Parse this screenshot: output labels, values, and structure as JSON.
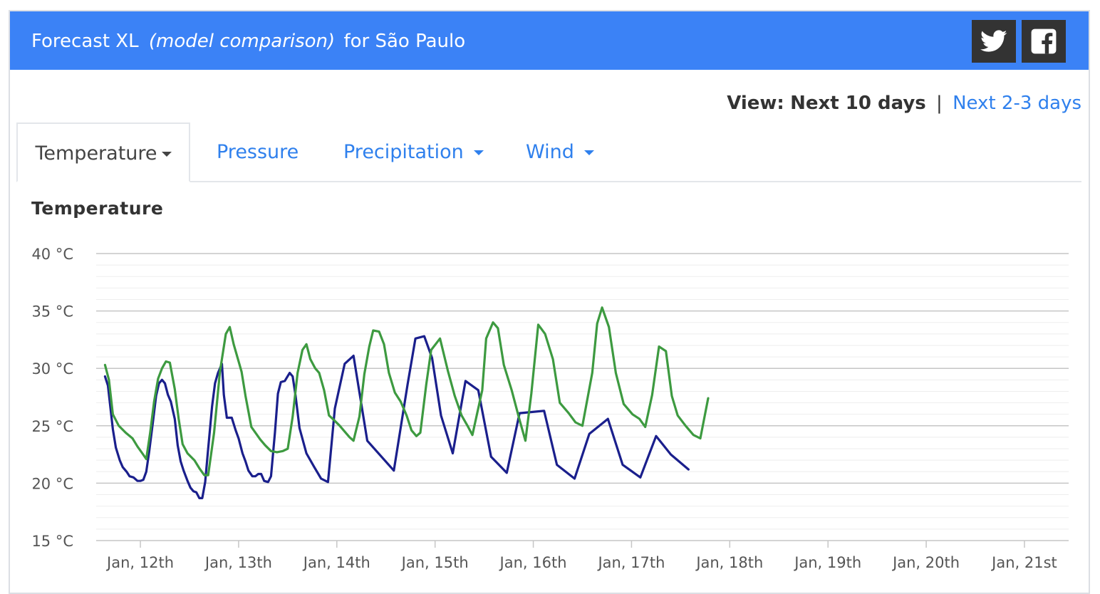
{
  "header": {
    "title_prefix": "Forecast XL",
    "title_em": "(model comparison)",
    "title_suffix": "for São Paulo",
    "twitter_icon": "twitter-icon",
    "facebook_icon": "facebook-icon",
    "bg_color": "#3b82f6"
  },
  "view": {
    "label": "View:",
    "current": "Next 10 days",
    "separator": "|",
    "alt": "Next 2-3 days"
  },
  "tabs": [
    {
      "label": "Temperature",
      "active": true,
      "has_caret": true
    },
    {
      "label": "Pressure",
      "active": false,
      "has_caret": false
    },
    {
      "label": "Precipitation",
      "active": false,
      "has_caret": true
    },
    {
      "label": "Wind",
      "active": false,
      "has_caret": true
    }
  ],
  "chart_title": "Temperature",
  "chart_data": {
    "type": "line",
    "title": "Temperature",
    "ylabel": "",
    "xlabel": "",
    "ylim": [
      15,
      40
    ],
    "yticks": [
      15,
      20,
      25,
      30,
      35,
      40
    ],
    "ytick_labels": [
      "15 °C",
      "20 °C",
      "25 °C",
      "30 °C",
      "35 °C",
      "40 °C"
    ],
    "xlim": [
      11.55,
      21.45
    ],
    "xticks": [
      12,
      13,
      14,
      15,
      16,
      17,
      18,
      19,
      20,
      21
    ],
    "xtick_labels": [
      "Jan, 12th",
      "Jan, 13th",
      "Jan, 14th",
      "Jan, 15th",
      "Jan, 16th",
      "Jan, 17th",
      "Jan, 18th",
      "Jan, 19th",
      "Jan, 20th",
      "Jan, 21st"
    ],
    "grid": true,
    "legend": "none",
    "series": [
      {
        "color": "#1a1f8c",
        "points": [
          [
            11.64,
            29.3
          ],
          [
            11.67,
            28.5
          ],
          [
            11.72,
            24.7
          ],
          [
            11.75,
            23.1
          ],
          [
            11.79,
            22.0
          ],
          [
            11.82,
            21.4
          ],
          [
            11.86,
            21.0
          ],
          [
            11.89,
            20.6
          ],
          [
            11.93,
            20.5
          ],
          [
            11.97,
            20.2
          ],
          [
            12.0,
            20.2
          ],
          [
            12.03,
            20.3
          ],
          [
            12.06,
            21.0
          ],
          [
            12.09,
            22.8
          ],
          [
            12.13,
            25.5
          ],
          [
            12.16,
            27.6
          ],
          [
            12.19,
            28.7
          ],
          [
            12.22,
            29.0
          ],
          [
            12.25,
            28.7
          ],
          [
            12.28,
            27.7
          ],
          [
            12.31,
            27.1
          ],
          [
            12.35,
            25.6
          ],
          [
            12.38,
            23.3
          ],
          [
            12.41,
            21.9
          ],
          [
            12.44,
            21.1
          ],
          [
            12.48,
            20.2
          ],
          [
            12.51,
            19.6
          ],
          [
            12.54,
            19.3
          ],
          [
            12.57,
            19.2
          ],
          [
            12.6,
            18.7
          ],
          [
            12.63,
            18.7
          ],
          [
            12.66,
            20.1
          ],
          [
            12.69,
            23.0
          ],
          [
            12.73,
            26.7
          ],
          [
            12.76,
            28.7
          ],
          [
            12.79,
            29.6
          ],
          [
            12.83,
            30.4
          ],
          [
            12.85,
            27.7
          ],
          [
            12.88,
            25.7
          ],
          [
            12.93,
            25.7
          ],
          [
            12.97,
            24.6
          ],
          [
            13.0,
            23.9
          ],
          [
            13.04,
            22.6
          ],
          [
            13.07,
            21.9
          ],
          [
            13.1,
            21.1
          ],
          [
            13.14,
            20.6
          ],
          [
            13.17,
            20.6
          ],
          [
            13.2,
            20.8
          ],
          [
            13.23,
            20.8
          ],
          [
            13.26,
            20.2
          ],
          [
            13.3,
            20.1
          ],
          [
            13.33,
            20.6
          ],
          [
            13.37,
            24.4
          ],
          [
            13.4,
            27.8
          ],
          [
            13.43,
            28.8
          ],
          [
            13.47,
            28.9
          ],
          [
            13.52,
            29.6
          ],
          [
            13.55,
            29.3
          ],
          [
            13.58,
            27.6
          ],
          [
            13.62,
            24.8
          ],
          [
            13.69,
            22.6
          ],
          [
            13.77,
            21.4
          ],
          [
            13.84,
            20.4
          ],
          [
            13.91,
            20.1
          ],
          [
            13.98,
            26.5
          ],
          [
            14.08,
            30.4
          ],
          [
            14.17,
            31.1
          ],
          [
            14.31,
            23.7
          ],
          [
            14.58,
            21.1
          ],
          [
            14.72,
            28.6
          ],
          [
            14.8,
            32.6
          ],
          [
            14.89,
            32.8
          ],
          [
            14.97,
            30.9
          ],
          [
            15.06,
            25.9
          ],
          [
            15.18,
            22.6
          ],
          [
            15.31,
            28.9
          ],
          [
            15.44,
            28.1
          ],
          [
            15.57,
            22.3
          ],
          [
            15.73,
            20.9
          ],
          [
            15.86,
            26.1
          ],
          [
            16.11,
            26.3
          ],
          [
            16.24,
            21.6
          ],
          [
            16.42,
            20.4
          ],
          [
            16.57,
            24.3
          ],
          [
            16.76,
            25.6
          ],
          [
            16.91,
            21.6
          ],
          [
            17.09,
            20.5
          ],
          [
            17.25,
            24.1
          ],
          [
            17.4,
            22.5
          ],
          [
            17.58,
            21.2
          ]
        ]
      },
      {
        "color": "#3d9a40",
        "points": [
          [
            11.64,
            30.3
          ],
          [
            11.68,
            29.0
          ],
          [
            11.72,
            26.0
          ],
          [
            11.78,
            25.0
          ],
          [
            11.85,
            24.4
          ],
          [
            11.92,
            23.9
          ],
          [
            11.97,
            23.2
          ],
          [
            12.02,
            22.6
          ],
          [
            12.06,
            22.1
          ],
          [
            12.1,
            24.4
          ],
          [
            12.14,
            27.1
          ],
          [
            12.18,
            29.1
          ],
          [
            12.22,
            30.0
          ],
          [
            12.26,
            30.6
          ],
          [
            12.3,
            30.5
          ],
          [
            12.35,
            28.2
          ],
          [
            12.39,
            25.6
          ],
          [
            12.43,
            23.4
          ],
          [
            12.48,
            22.6
          ],
          [
            12.55,
            22.0
          ],
          [
            12.6,
            21.3
          ],
          [
            12.65,
            20.7
          ],
          [
            12.69,
            20.7
          ],
          [
            12.75,
            24.4
          ],
          [
            12.81,
            29.7
          ],
          [
            12.87,
            33.0
          ],
          [
            12.91,
            33.6
          ],
          [
            12.95,
            32.1
          ],
          [
            13.03,
            29.7
          ],
          [
            13.07,
            27.6
          ],
          [
            13.13,
            24.9
          ],
          [
            13.22,
            23.8
          ],
          [
            13.27,
            23.3
          ],
          [
            13.33,
            22.8
          ],
          [
            13.39,
            22.7
          ],
          [
            13.45,
            22.8
          ],
          [
            13.5,
            23.0
          ],
          [
            13.55,
            25.8
          ],
          [
            13.6,
            29.6
          ],
          [
            13.65,
            31.6
          ],
          [
            13.69,
            32.1
          ],
          [
            13.73,
            30.8
          ],
          [
            13.78,
            30.0
          ],
          [
            13.82,
            29.6
          ],
          [
            13.87,
            28.1
          ],
          [
            13.92,
            25.9
          ],
          [
            13.97,
            25.5
          ],
          [
            14.03,
            25.0
          ],
          [
            14.08,
            24.5
          ],
          [
            14.13,
            24.0
          ],
          [
            14.17,
            23.7
          ],
          [
            14.23,
            25.8
          ],
          [
            14.28,
            29.5
          ],
          [
            14.33,
            31.9
          ],
          [
            14.37,
            33.3
          ],
          [
            14.43,
            33.2
          ],
          [
            14.48,
            32.1
          ],
          [
            14.53,
            29.6
          ],
          [
            14.59,
            27.9
          ],
          [
            14.65,
            27.1
          ],
          [
            14.71,
            25.9
          ],
          [
            14.76,
            24.6
          ],
          [
            14.81,
            24.1
          ],
          [
            14.85,
            24.4
          ],
          [
            14.91,
            28.6
          ],
          [
            14.96,
            31.6
          ],
          [
            15.05,
            32.6
          ],
          [
            15.13,
            29.8
          ],
          [
            15.2,
            27.6
          ],
          [
            15.27,
            25.9
          ],
          [
            15.33,
            25.0
          ],
          [
            15.38,
            24.2
          ],
          [
            15.48,
            28.1
          ],
          [
            15.52,
            32.6
          ],
          [
            15.59,
            34.0
          ],
          [
            15.64,
            33.5
          ],
          [
            15.7,
            30.3
          ],
          [
            15.78,
            28.1
          ],
          [
            15.86,
            25.5
          ],
          [
            15.92,
            23.7
          ],
          [
            15.98,
            27.8
          ],
          [
            16.05,
            33.8
          ],
          [
            16.12,
            33.0
          ],
          [
            16.2,
            30.8
          ],
          [
            16.27,
            27.0
          ],
          [
            16.36,
            26.1
          ],
          [
            16.43,
            25.3
          ],
          [
            16.5,
            25.0
          ],
          [
            16.6,
            29.6
          ],
          [
            16.65,
            33.9
          ],
          [
            16.7,
            35.3
          ],
          [
            16.77,
            33.6
          ],
          [
            16.84,
            29.6
          ],
          [
            16.92,
            26.9
          ],
          [
            17.01,
            26.0
          ],
          [
            17.08,
            25.6
          ],
          [
            17.14,
            24.9
          ],
          [
            17.21,
            27.7
          ],
          [
            17.28,
            31.9
          ],
          [
            17.35,
            31.5
          ],
          [
            17.41,
            27.6
          ],
          [
            17.47,
            25.9
          ],
          [
            17.55,
            25.0
          ],
          [
            17.63,
            24.2
          ],
          [
            17.7,
            23.9
          ],
          [
            17.78,
            27.4
          ]
        ]
      }
    ]
  }
}
